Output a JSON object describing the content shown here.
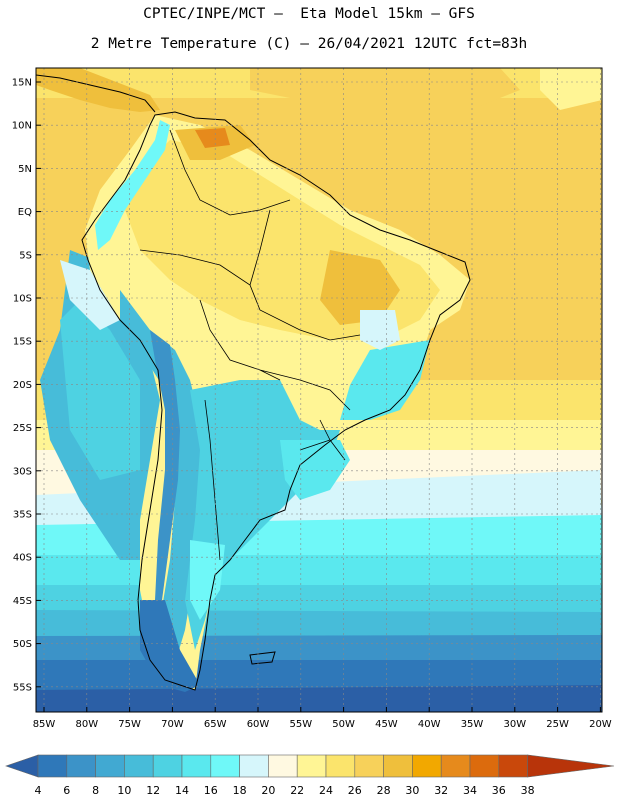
{
  "header": {
    "line1": "CPTEC/INPE/MCT –  Eta Model 15km – GFS",
    "line2": "2 Metre Temperature (C) – 26/04/2021 12UTC fct=83h"
  },
  "map": {
    "lat_labels": [
      "15N",
      "10N",
      "5N",
      "EQ",
      "5S",
      "10S",
      "15S",
      "20S",
      "25S",
      "30S",
      "35S",
      "40S",
      "45S",
      "50S",
      "55S"
    ],
    "lon_labels": [
      "85W",
      "80W",
      "75W",
      "70W",
      "65W",
      "60W",
      "55W",
      "50W",
      "45W",
      "40W",
      "35W",
      "30W",
      "25W",
      "20W"
    ]
  },
  "colorbar": {
    "labels": [
      "4",
      "6",
      "8",
      "10",
      "12",
      "14",
      "16",
      "18",
      "20",
      "22",
      "24",
      "26",
      "28",
      "30",
      "32",
      "34",
      "36",
      "38"
    ],
    "colors": [
      "#2b5fa6",
      "#2f78b9",
      "#3c93c8",
      "#41a9d2",
      "#47bcd9",
      "#4ed2e2",
      "#5ae8ee",
      "#6ff8f8",
      "#d6f6fb",
      "#fff9e1",
      "#fff595",
      "#fbe46c",
      "#f7d15a",
      "#efbf3c",
      "#f2a800",
      "#e68a1c",
      "#dc6b0d",
      "#c9480b",
      "#b8340a"
    ]
  }
}
